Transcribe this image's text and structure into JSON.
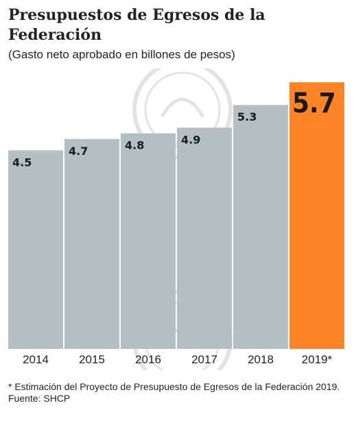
{
  "colors": {
    "bar": "#b3bfc3",
    "highlight": "#ff8426",
    "label": "#1a1a1a",
    "watermark": "#e1e4e4"
  },
  "chart_data": {
    "type": "bar",
    "title": "Presupuestos de Egresos de la Federación",
    "subtitle": "(Gasto neto aprobado en billones de pesos)",
    "categories": [
      "2014",
      "2015",
      "2016",
      "2017",
      "2018",
      "2019*"
    ],
    "values": [
      4.5,
      4.7,
      4.8,
      4.9,
      5.3,
      5.7
    ],
    "highlight_index": 5,
    "xlabel": "",
    "ylabel": "",
    "grid": false,
    "legend": "none"
  },
  "footnotes": {
    "note": "* Estimación del Proyecto de Presupuesto de Egresos de la Federación 2019.",
    "source": "Fuente: SHCP"
  }
}
